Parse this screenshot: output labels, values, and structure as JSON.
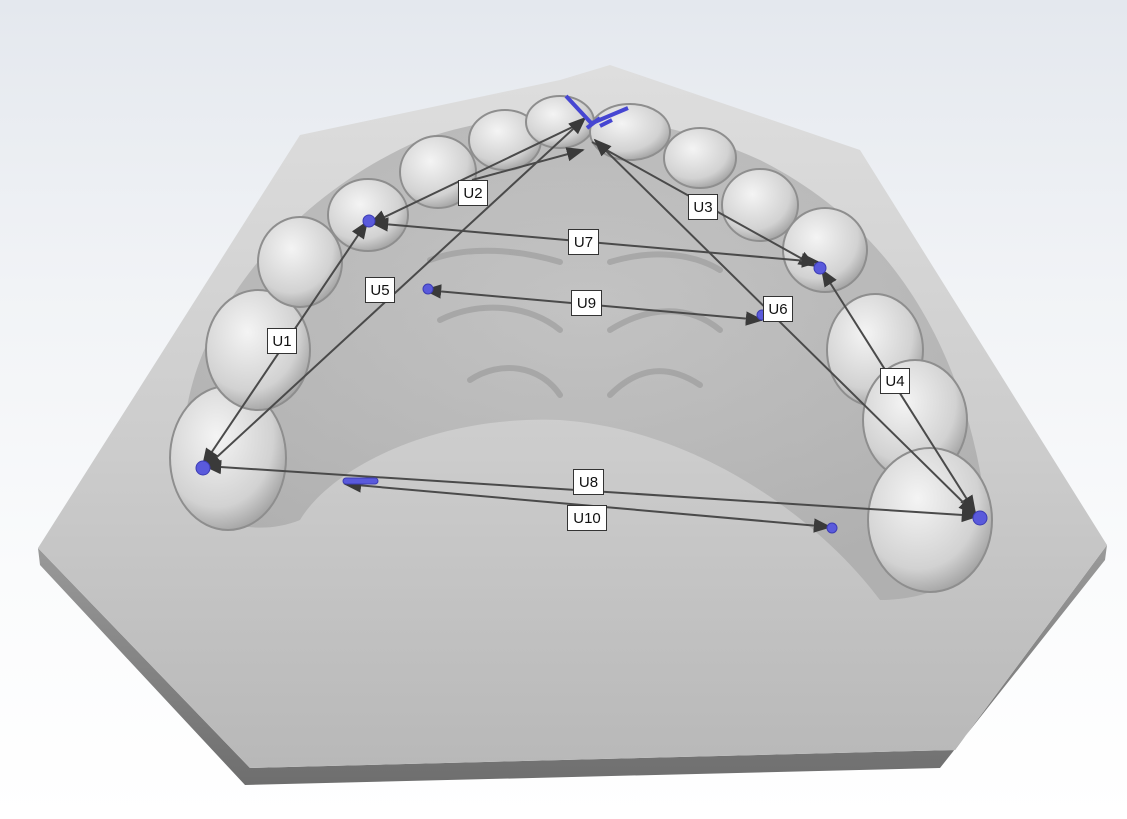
{
  "viewer": {
    "background_colors": [
      "#e4e8ee",
      "#ffffff"
    ],
    "model_color": "#c9c9c9",
    "measurement_line_color": "#555555",
    "landmark_color": "#5a5adc"
  },
  "measurements": [
    {
      "id": "U1",
      "label": "U1"
    },
    {
      "id": "U2",
      "label": "U2"
    },
    {
      "id": "U3",
      "label": "U3"
    },
    {
      "id": "U4",
      "label": "U4"
    },
    {
      "id": "U5",
      "label": "U5"
    },
    {
      "id": "U6",
      "label": "U6"
    },
    {
      "id": "U7",
      "label": "U7"
    },
    {
      "id": "U8",
      "label": "U8"
    },
    {
      "id": "U9",
      "label": "U9"
    },
    {
      "id": "U10",
      "label": "U10"
    }
  ]
}
